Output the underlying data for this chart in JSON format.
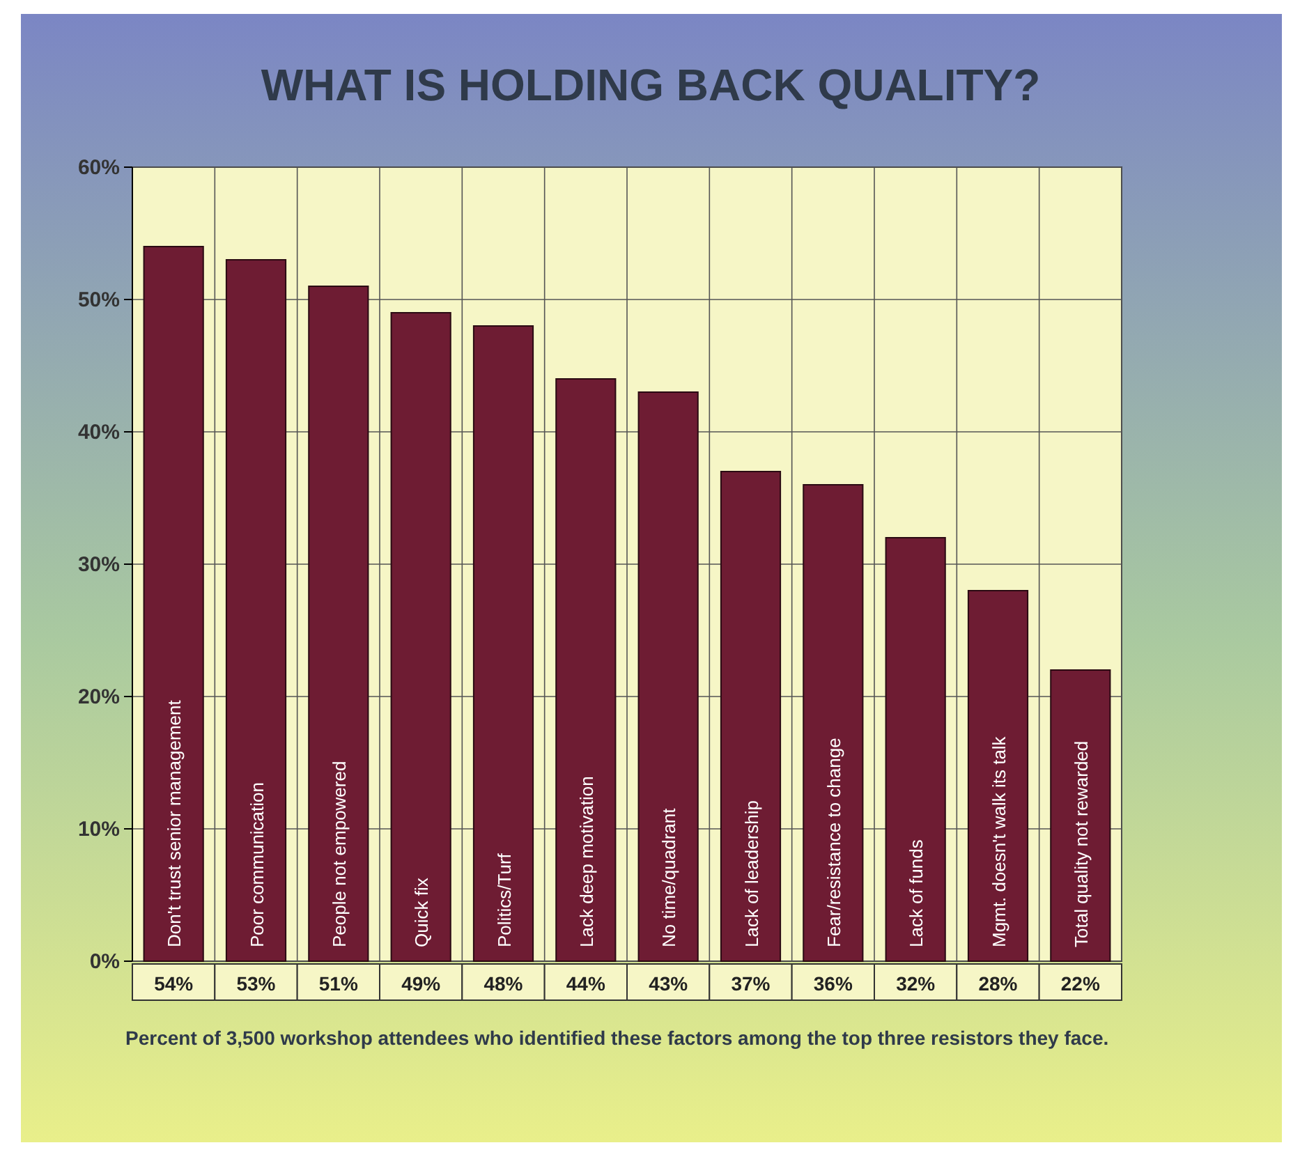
{
  "chart_data": {
    "type": "bar",
    "title": "WHAT IS HOLDING BACK QUALITY?",
    "categories": [
      "Don't trust senior management",
      "Poor communication",
      "People not empowered",
      "Quick fix",
      "Politics/Turf",
      "Lack deep motivation",
      "No time/quadrant",
      "Lack of leadership",
      "Fear/resistance to change",
      "Lack of funds",
      "Mgmt. doesn't walk its talk",
      "Total quality not rewarded"
    ],
    "values": [
      54,
      53,
      51,
      49,
      48,
      44,
      43,
      37,
      36,
      32,
      28,
      22
    ],
    "value_labels": [
      "54%",
      "53%",
      "51%",
      "49%",
      "48%",
      "44%",
      "43%",
      "37%",
      "36%",
      "32%",
      "28%",
      "22%"
    ],
    "color": "#6e1c33",
    "ylim": [
      0,
      60
    ],
    "yticks": [
      {
        "value": 0,
        "label": "0%"
      },
      {
        "value": 10,
        "label": "10%"
      },
      {
        "value": 20,
        "label": "20%"
      },
      {
        "value": 30,
        "label": "30%"
      },
      {
        "value": 40,
        "label": "40%"
      },
      {
        "value": 50,
        "label": "50%"
      },
      {
        "value": 60,
        "label": "60%"
      }
    ],
    "grid": true,
    "annotations": [
      "Percent of 3,500 workshop attendees who identified these factors among the top three resistors they face."
    ]
  }
}
